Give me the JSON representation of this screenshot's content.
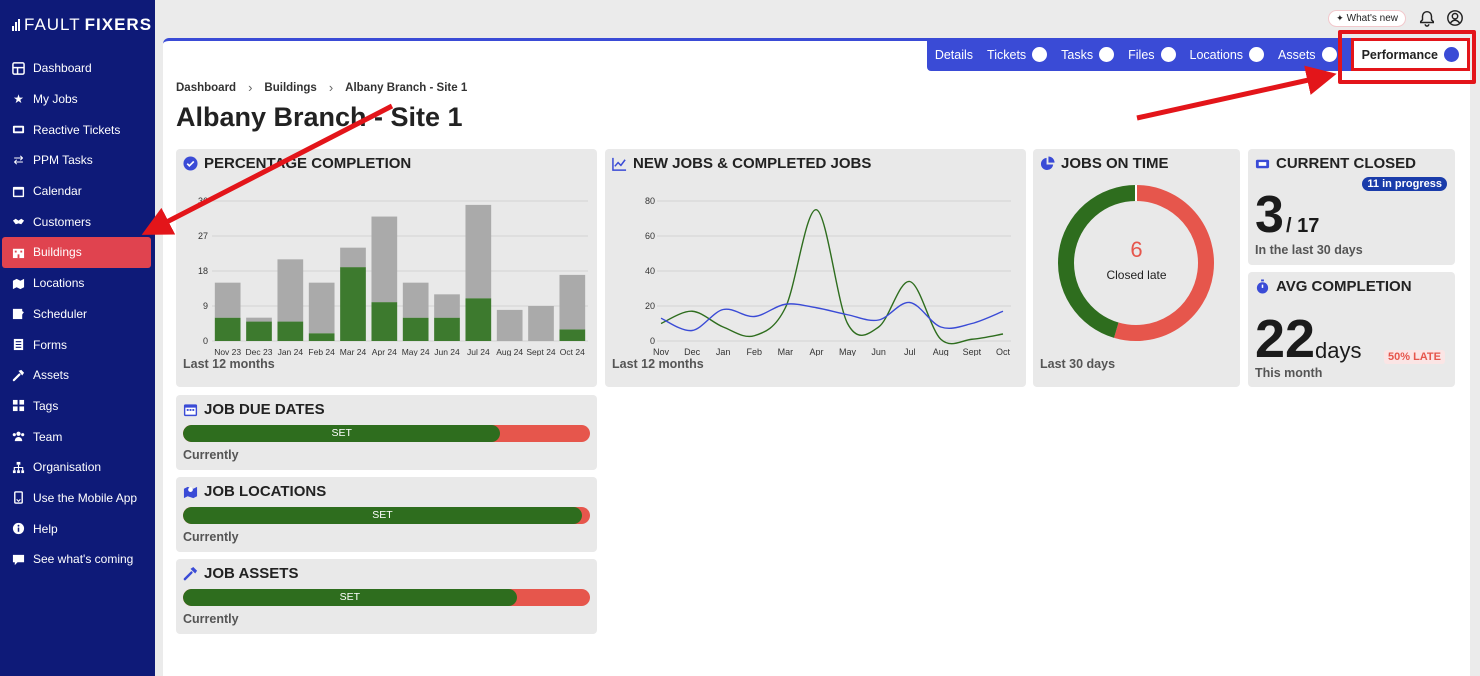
{
  "logo": {
    "bold": "FAULT",
    "rest": "FIXERS"
  },
  "sidebar": {
    "items": [
      {
        "label": "Dashboard",
        "icon": "dashboard-icon"
      },
      {
        "label": "My Jobs",
        "icon": "star-icon"
      },
      {
        "label": "Reactive Tickets",
        "icon": "ticket-icon"
      },
      {
        "label": "PPM Tasks",
        "icon": "repeat-icon"
      },
      {
        "label": "Calendar",
        "icon": "calendar-icon"
      },
      {
        "label": "Customers",
        "icon": "handshake-icon"
      },
      {
        "label": "Buildings",
        "icon": "building-icon",
        "active": true
      },
      {
        "label": "Locations",
        "icon": "map-icon"
      },
      {
        "label": "Scheduler",
        "icon": "schedule-icon"
      },
      {
        "label": "Forms",
        "icon": "form-icon"
      },
      {
        "label": "Assets",
        "icon": "hammer-icon"
      },
      {
        "label": "Tags",
        "icon": "tags-icon"
      },
      {
        "label": "Team",
        "icon": "team-icon"
      },
      {
        "label": "Organisation",
        "icon": "org-icon"
      },
      {
        "label": "Use the Mobile App",
        "icon": "mobile-icon"
      },
      {
        "label": "Help",
        "icon": "info-icon"
      },
      {
        "label": "See what's coming",
        "icon": "chat-icon"
      }
    ]
  },
  "topbar": {
    "whats_new": "What's new"
  },
  "tabs": [
    {
      "label": "Details",
      "dot": false
    },
    {
      "label": "Tickets",
      "dot": true
    },
    {
      "label": "Tasks",
      "dot": true
    },
    {
      "label": "Files",
      "dot": true
    },
    {
      "label": "Locations",
      "dot": true
    },
    {
      "label": "Assets",
      "dot": true
    },
    {
      "label": "Performance",
      "dot": true,
      "active": true
    }
  ],
  "breadcrumb": [
    "Dashboard",
    "Buildings",
    "Albany Branch - Site 1"
  ],
  "page_title": "Albany Branch - Site 1",
  "cards": {
    "percentage": {
      "title": "PERCENTAGE COMPLETION",
      "foot": "Last 12 months"
    },
    "newjobs": {
      "title": "NEW JOBS & COMPLETED JOBS",
      "foot": "Last 12 months"
    },
    "ontime": {
      "title": "JOBS ON TIME",
      "center_value": "6",
      "center_label": "Closed late",
      "foot": "Last 30 days"
    },
    "current": {
      "title": "CURRENT CLOSED",
      "badge": "11 in progress",
      "closed": "3",
      "total": "/ 17",
      "foot": "In the last 30 days"
    },
    "avg": {
      "title": "AVG COMPLETION",
      "value": "22",
      "unit": "days",
      "late": "50% LATE",
      "foot": "This month"
    },
    "due": {
      "title": "JOB DUE DATES",
      "bar_label": "SET",
      "fill": 0.78,
      "foot": "Currently"
    },
    "locations": {
      "title": "JOB LOCATIONS",
      "bar_label": "SET",
      "fill": 0.98,
      "foot": "Currently"
    },
    "assets": {
      "title": "JOB ASSETS",
      "bar_label": "SET",
      "fill": 0.82,
      "foot": "Currently"
    }
  },
  "chart_data": [
    {
      "type": "bar",
      "title": "PERCENTAGE COMPLETION",
      "categories": [
        "Nov 23",
        "Dec 23",
        "Jan 24",
        "Feb 24",
        "Mar 24",
        "Apr 24",
        "May 24",
        "Jun 24",
        "Jul 24",
        "Aug 24",
        "Sept 24",
        "Oct 24"
      ],
      "yticks": [
        0,
        9,
        18,
        27,
        36
      ],
      "ylim": [
        0,
        36
      ],
      "stacked": true,
      "series": [
        {
          "values": [
            6,
            5,
            5,
            2,
            19,
            10,
            6,
            6,
            11,
            0,
            0,
            3
          ],
          "color": "#3d7a2e"
        },
        {
          "values": [
            9,
            1,
            16,
            13,
            5,
            22,
            9,
            6,
            24,
            8,
            9,
            14
          ],
          "color": "#aaaaaa"
        }
      ],
      "grid": true
    },
    {
      "type": "line",
      "title": "NEW JOBS & COMPLETED JOBS",
      "categories": [
        "Nov",
        "Dec",
        "Jan",
        "Feb",
        "Mar",
        "Apr",
        "May",
        "Jun",
        "Jul",
        "Aug",
        "Sept",
        "Oct"
      ],
      "yticks": [
        0,
        20,
        40,
        60,
        80
      ],
      "ylim": [
        0,
        80
      ],
      "series": [
        {
          "values": [
            10,
            17,
            8,
            3,
            19,
            75,
            10,
            8,
            34,
            1,
            1,
            4
          ],
          "color": "#2e6d1e"
        },
        {
          "values": [
            13,
            6,
            18,
            14,
            21,
            19,
            15,
            12,
            22,
            8,
            10,
            17
          ],
          "color": "#3a4bd6"
        }
      ],
      "grid": true
    },
    {
      "type": "pie",
      "title": "JOBS ON TIME",
      "values": [
        6,
        5
      ],
      "colors": [
        "#e6564c",
        "#2e6d1e"
      ]
    }
  ]
}
